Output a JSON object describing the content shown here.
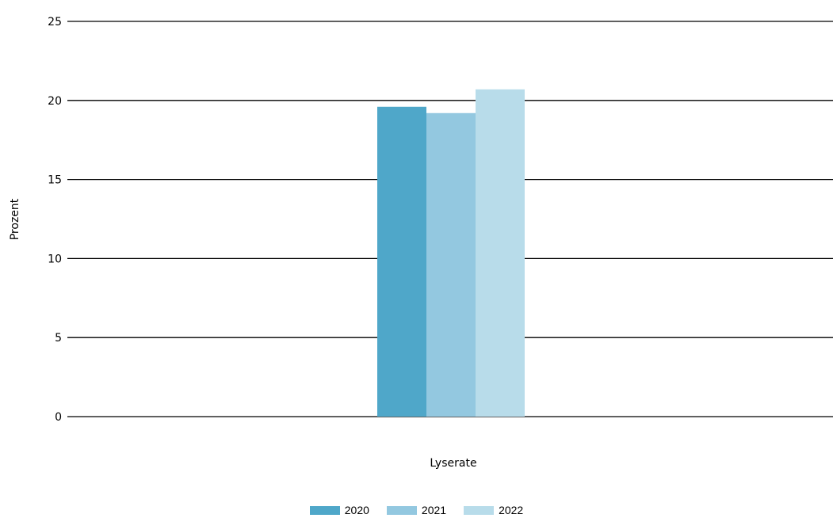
{
  "chart_data": {
    "type": "bar",
    "categories": [
      "Lyserate"
    ],
    "series": [
      {
        "name": "2020",
        "values": [
          19.6
        ],
        "color": "#4fa7c9"
      },
      {
        "name": "2021",
        "values": [
          19.2
        ],
        "color": "#93c8e0"
      },
      {
        "name": "2022",
        "values": [
          20.7
        ],
        "color": "#b8dcea"
      }
    ],
    "xlabel": "Lyserate",
    "ylabel": "Prozent",
    "ylim": [
      0,
      25
    ],
    "yticks": [
      "0",
      "5",
      "10",
      "15",
      "20",
      "25"
    ],
    "grid": true,
    "legend_position": "bottom-center"
  }
}
